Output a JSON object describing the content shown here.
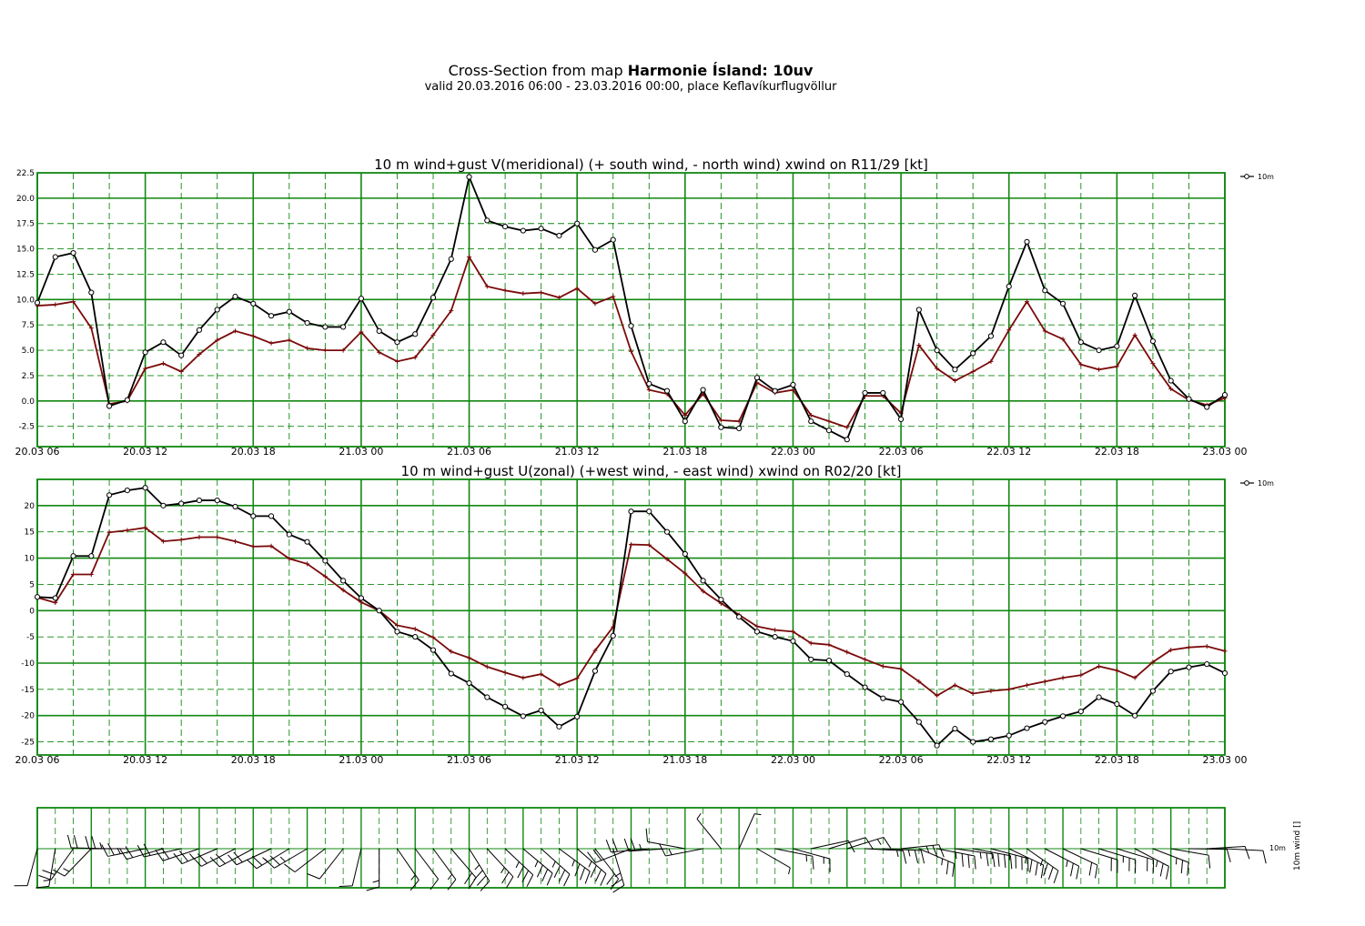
{
  "title": {
    "prefix": "Cross-Section from map ",
    "bold": "Harmonie Ísland: 10uv",
    "subtitle": "valid 20.03.2016 06:00 - 23.03.2016 00:00, place Keflavíkurflugvöllur"
  },
  "colors": {
    "grid": "#118811",
    "wind": "#000000",
    "gust": "#7a0a0a"
  },
  "chart_data": [
    {
      "type": "line",
      "title": "10 m wind+gust V(meridional) (+ south wind, - north wind) xwind on R11/29 [kt]",
      "x_ticks": [
        "20.03 06",
        "20.03 12",
        "20.03 18",
        "21.03 00",
        "21.03 06",
        "21.03 12",
        "21.03 18",
        "22.03 00",
        "22.03 06",
        "22.03 12",
        "22.03 18",
        "23.03 00"
      ],
      "x_range_hours": [
        0,
        66
      ],
      "ylim": [
        -4.5,
        22.5
      ],
      "y_ticks": [
        "-2.5",
        "0.0",
        "2.5",
        "5.0",
        "7.5",
        "10.0",
        "12.5",
        "15.0",
        "17.5",
        "20.0",
        "22.5"
      ],
      "legend": [
        "10m"
      ],
      "series": [
        {
          "name": "10m",
          "values": [
            9.7,
            14.2,
            14.6,
            10.7,
            -0.5,
            0.1,
            4.8,
            5.8,
            4.5,
            7.0,
            9.0,
            10.3,
            9.6,
            8.4,
            8.8,
            7.7,
            7.3,
            7.3,
            10.1,
            6.9,
            5.8,
            6.6,
            10.2,
            14.0,
            22.1,
            17.8,
            17.2,
            16.8,
            17.0,
            16.3,
            17.5,
            14.9,
            15.9,
            7.4,
            1.7,
            1.0,
            -2.0,
            1.1,
            -2.6,
            -2.7,
            2.3,
            1.0,
            1.6,
            -2.0,
            -2.9,
            -3.8,
            0.8,
            0.8,
            -1.8,
            9.0,
            5.0,
            3.1,
            4.7,
            6.4,
            11.3,
            15.7,
            10.9,
            9.6,
            5.8,
            5.0,
            5.4,
            10.4,
            5.9,
            2.0,
            0.2,
            -0.6,
            0.6
          ]
        },
        {
          "values": [
            9.4,
            9.5,
            9.8,
            7.2,
            -0.3,
            0.0,
            3.2,
            3.7,
            2.9,
            4.6,
            6.0,
            6.9,
            6.4,
            5.7,
            6.0,
            5.2,
            5.0,
            5.0,
            6.8,
            4.8,
            3.9,
            4.3,
            6.5,
            8.9,
            14.2,
            11.3,
            10.9,
            10.6,
            10.7,
            10.2,
            11.1,
            9.6,
            10.3,
            4.9,
            1.1,
            0.7,
            -1.4,
            0.7,
            -1.9,
            -2.0,
            1.8,
            0.8,
            1.1,
            -1.4,
            -2.0,
            -2.6,
            0.5,
            0.5,
            -1.2,
            5.5,
            3.2,
            2.0,
            2.9,
            3.9,
            7.0,
            9.8,
            6.9,
            6.1,
            3.6,
            3.1,
            3.4,
            6.5,
            3.7,
            1.2,
            0.1,
            -0.4,
            0.3
          ]
        }
      ]
    },
    {
      "type": "line",
      "title": "10 m wind+gust U(zonal) (+west wind, - east wind) xwind on R02/20 [kt]",
      "x_ticks": [
        "20.03 06",
        "20.03 12",
        "20.03 18",
        "21.03 00",
        "21.03 06",
        "21.03 12",
        "21.03 18",
        "22.03 00",
        "22.03 06",
        "22.03 12",
        "22.03 18",
        "23.03 00"
      ],
      "x_range_hours": [
        0,
        66
      ],
      "ylim": [
        -27.5,
        25
      ],
      "y_ticks": [
        "-25",
        "-20",
        "-15",
        "-10",
        "-5",
        "0",
        "5",
        "10",
        "15",
        "20"
      ],
      "legend": [
        "10m"
      ],
      "series": [
        {
          "name": "10m",
          "values": [
            2.6,
            2.4,
            10.4,
            10.4,
            22.0,
            22.9,
            23.4,
            20.0,
            20.4,
            21.0,
            21.0,
            19.8,
            18.0,
            18.0,
            14.5,
            13.1,
            9.5,
            5.7,
            2.4,
            0.0,
            -4.0,
            -5.0,
            -7.5,
            -12.0,
            -13.8,
            -16.5,
            -18.3,
            -20.1,
            -19.0,
            -22.1,
            -20.2,
            -11.5,
            -4.8,
            18.9,
            18.9,
            15.0,
            10.8,
            5.7,
            2.1,
            -1.2,
            -4.0,
            -5.0,
            -5.8,
            -9.3,
            -9.5,
            -12.1,
            -14.6,
            -16.7,
            -17.4,
            -21.2,
            -25.7,
            -22.5,
            -25.0,
            -24.5,
            -23.8,
            -22.4,
            -21.2,
            -20.1,
            -19.2,
            -16.5,
            -17.8,
            -20.0,
            -15.3,
            -11.6,
            -10.8,
            -10.2,
            -11.9
          ]
        },
        {
          "values": [
            2.5,
            1.5,
            6.9,
            6.9,
            14.9,
            15.3,
            15.8,
            13.2,
            13.5,
            14.0,
            14.0,
            13.2,
            12.2,
            12.3,
            9.9,
            8.9,
            6.5,
            3.9,
            1.6,
            0.0,
            -2.8,
            -3.5,
            -5.1,
            -7.8,
            -9.0,
            -10.7,
            -11.8,
            -12.8,
            -12.1,
            -14.2,
            -12.9,
            -7.6,
            -3.1,
            12.6,
            12.5,
            9.8,
            7.1,
            3.7,
            1.4,
            -0.8,
            -3.0,
            -3.7,
            -4.0,
            -6.2,
            -6.5,
            -7.9,
            -9.3,
            -10.6,
            -11.1,
            -13.5,
            -16.2,
            -14.2,
            -15.8,
            -15.3,
            -15.0,
            -14.2,
            -13.5,
            -12.8,
            -12.3,
            -10.6,
            -11.4,
            -12.8,
            -9.8,
            -7.5,
            -7.0,
            -6.8,
            -7.7
          ]
        }
      ]
    },
    {
      "type": "wind-barbs",
      "ylabel": "10m wind []",
      "legend": [
        "10m"
      ]
    }
  ]
}
